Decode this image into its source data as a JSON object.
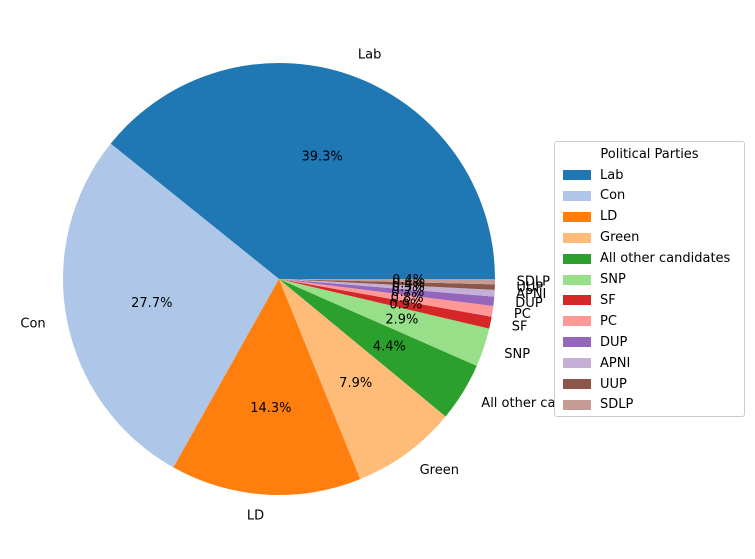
{
  "chart_data": {
    "type": "pie",
    "categories": [
      "Lab",
      "Con",
      "LD",
      "Green",
      "All other candidates",
      "SNP",
      "SF",
      "PC",
      "DUP",
      "APNI",
      "UUP",
      "SDLP"
    ],
    "values": [
      39.3,
      27.7,
      14.3,
      7.9,
      4.4,
      2.9,
      0.9,
      0.8,
      0.7,
      0.5,
      0.4,
      0.4
    ],
    "pct_labels": [
      "39.3%",
      "27.7%",
      "14.3%",
      "7.9%",
      "4.4%",
      "2.9%",
      "0.9%",
      "0.8%",
      "0.7%",
      "0.5%",
      "0.4%",
      "0.4%"
    ],
    "colors": [
      "#1f77b4",
      "#aec7e8",
      "#ff7f0e",
      "#ffbb78",
      "#2ca02c",
      "#98df8a",
      "#d62728",
      "#ff9896",
      "#9467bd",
      "#c5b0d5",
      "#8c564b",
      "#c49c94"
    ],
    "legend": {
      "title": "Political Parties",
      "placement": "center-right"
    }
  }
}
